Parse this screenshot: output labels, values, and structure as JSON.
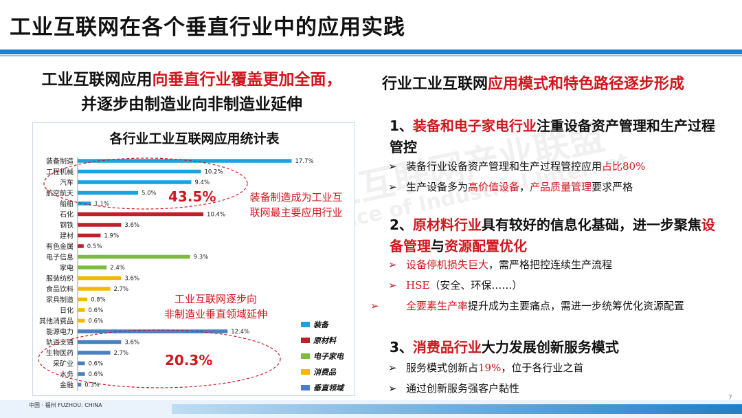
{
  "page": {
    "title": "工业互联网在各个垂直行业中的应用实践",
    "page_number": "7",
    "footer": "中国 · 福州   FUZHOU. CHINA"
  },
  "left": {
    "heading_1a": "工业互联网应用",
    "heading_1b": "向垂直行业覆盖更加全面，",
    "heading_2": "并逐步由制造业向非制造业延伸",
    "callout_1": [
      "装备制造成为工业互",
      "联网最主要应用行业"
    ],
    "callout_2": [
      "工业互联网逐步向",
      "非制造业垂直领域延伸"
    ],
    "pct_1": "43.5%",
    "pct_2": "20.3%"
  },
  "chart_data": {
    "type": "bar",
    "orientation": "horizontal",
    "title": "各行业工业互联网应用统计表",
    "categories": [
      "装备制造",
      "工程机械",
      "汽车",
      "航空航天",
      "船舶",
      "石化",
      "钢铁",
      "建材",
      "有色金属",
      "电子信息",
      "家电",
      "服装纺织",
      "食品饮料",
      "家具制造",
      "日化",
      "其他消费品",
      "能源电力",
      "轨道交通",
      "生物医药",
      "采矿业",
      "水务",
      "金融"
    ],
    "values": [
      17.7,
      10.2,
      9.4,
      5.0,
      1.1,
      10.4,
      3.6,
      1.9,
      0.5,
      9.3,
      2.4,
      3.6,
      2.7,
      0.8,
      0.6,
      0.6,
      12.4,
      3.6,
      2.7,
      0.6,
      0.6,
      0.3
    ],
    "value_labels": [
      "17.7%",
      "10.2%",
      "9.4%",
      "5.0%",
      "1.1%",
      "10.4%",
      "3.6%",
      "1.9%",
      "0.5%",
      "9.3%",
      "2.4%",
      "3.6%",
      "2.7%",
      "0.8%",
      "0.6%",
      "0.6%",
      "12.4%",
      "3.6%",
      "2.7%",
      "0.6%",
      "0.6%",
      "0.3%"
    ],
    "groups": [
      "装备",
      "装备",
      "装备",
      "装备",
      "装备",
      "原材料",
      "原材料",
      "原材料",
      "原材料",
      "电子家电",
      "电子家电",
      "消费品",
      "消费品",
      "消费品",
      "消费品",
      "消费品",
      "垂直领域",
      "垂直领域",
      "垂直领域",
      "垂直领域",
      "垂直领域",
      "垂直领域"
    ],
    "xlim": [
      0,
      20
    ],
    "grid": false,
    "legend": [
      {
        "name": "装备",
        "color": "#1aa3e0"
      },
      {
        "name": "原材料",
        "color": "#c0202a"
      },
      {
        "name": "电子家电",
        "color": "#7dbb3a"
      },
      {
        "name": "消费品",
        "color": "#f5b800"
      },
      {
        "name": "垂直领域",
        "color": "#4a7fc1"
      }
    ],
    "legend_placement": "bottom-right"
  },
  "right": {
    "heading_a": "行业工业互联网",
    "heading_b": "应用模式和特色路径逐步形成",
    "sections": [
      {
        "num": "1、",
        "hl": "装备和电子家电行业",
        "rest": "注重设备资产管理和生产过程管控",
        "bullets": [
          {
            "pre": "装备行业设备资产管理和生产过程管控应用",
            "hl": "占比80%",
            "post": ""
          },
          {
            "pre": "生产设备多为",
            "hl": "高价值设备",
            "mid": "，",
            "hl2": "产品质量管理",
            "post": "要求严格"
          }
        ]
      },
      {
        "num": "2、",
        "hl": "原材料行业",
        "rest_a": "具有较好的信息化基础，进一步聚焦",
        "hl2": "设备管理",
        "rest_b": "与",
        "hl3": "资源配置优化",
        "bullets": [
          {
            "hl": "设备停机损失巨大",
            "post": "，需严格把控连续生产流程"
          },
          {
            "hl": "HSE",
            "post": "（安全、环保……）"
          },
          {
            "hl": "全要素生产率",
            "post": "提升成为主要痛点，需进一步统筹优化资源配置"
          }
        ]
      },
      {
        "num": "3、",
        "hl": "消费品行业",
        "rest": "大力发展创新服务模式",
        "bullets": [
          {
            "pre": "服务模式创新占",
            "hl": "19%",
            "post": "，位于各行业之首"
          },
          {
            "pre": "通过创新服务强客户黏性",
            "hl": "",
            "post": ""
          }
        ]
      }
    ]
  },
  "watermark": {
    "line1": "工业互联网产业联盟",
    "line2": "Alliance of Industrial Internet"
  }
}
